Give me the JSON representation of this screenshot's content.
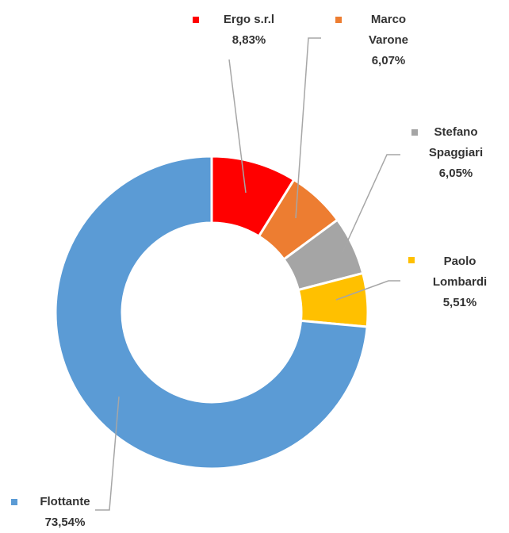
{
  "chart_data": {
    "type": "donut",
    "categories": [
      "Ergo s.r.l",
      "Marco Varone",
      "Stefano Spaggiari",
      "Paolo Lombardi",
      "Flottante"
    ],
    "values": [
      8.83,
      6.07,
      6.05,
      5.51,
      73.54
    ],
    "value_labels": [
      "8,83%",
      "6,07%",
      "6,05%",
      "5,51%",
      "73,54%"
    ],
    "colors": [
      "#ff0000",
      "#ed7d31",
      "#a5a5a5",
      "#ffc000",
      "#5b9bd5"
    ]
  }
}
